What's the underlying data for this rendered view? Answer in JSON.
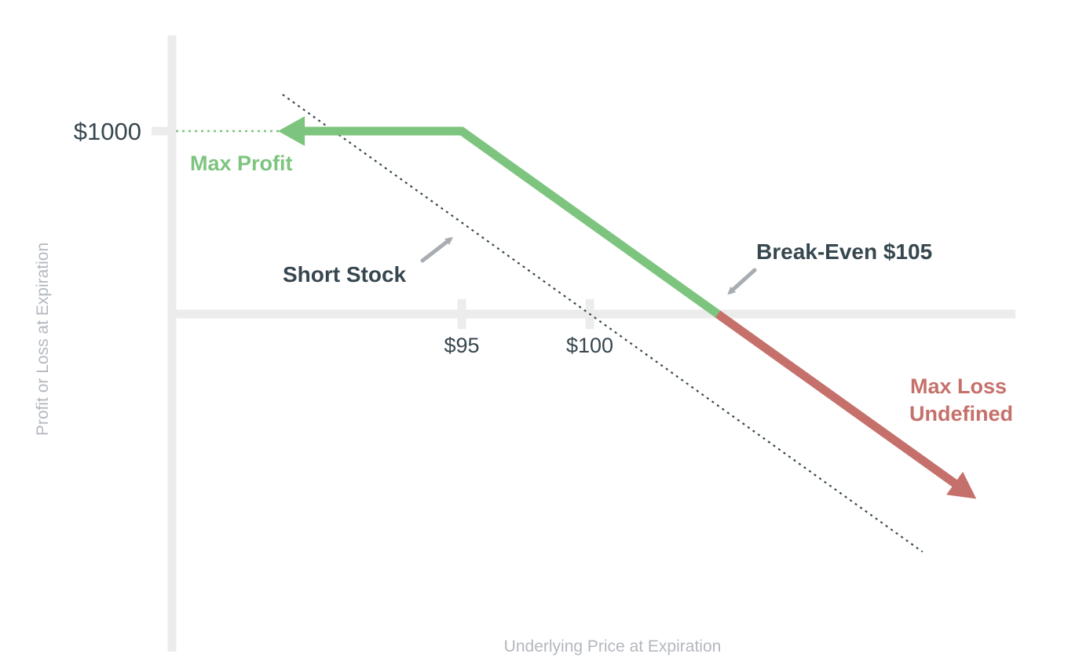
{
  "colors": {
    "profit": "#7dc47e",
    "loss": "#c5706b",
    "axis": "#ececed",
    "text_dark": "#37474f",
    "text_axis": "#b3b8be",
    "annotation_arrow": "#a9adb3",
    "short_stock_line": "#37474f"
  },
  "chart_data": {
    "type": "line",
    "xlabel": "Underlying Price at Expiration",
    "ylabel": "Profit or Loss at Expiration",
    "x_ticks": [
      {
        "value": 95,
        "label": "$95"
      },
      {
        "value": 100,
        "label": "$100"
      }
    ],
    "y_ticks": [
      {
        "value": 1000,
        "label": "$1000"
      }
    ],
    "xlim": [
      83,
      122
    ],
    "ylim": [
      -1700,
      1650
    ],
    "grid": false,
    "series": [
      {
        "role": "profit",
        "values_x": [
          88.5,
          95,
          105
        ],
        "values_y": [
          1000,
          1000,
          0
        ]
      },
      {
        "role": "loss",
        "values_x": [
          105,
          115
        ],
        "values_y": [
          0,
          -1000
        ]
      },
      {
        "name": "Short Stock",
        "role": "short_stock",
        "style": "dotted",
        "values_x": [
          88,
          113
        ],
        "values_y": [
          1200,
          -1300
        ]
      }
    ],
    "annotations": {
      "max_profit": "Max Profit",
      "short_stock": "Short Stock",
      "break_even": "Break-Even $105",
      "max_loss_line1": "Max Loss",
      "max_loss_line2": "Undefined"
    }
  }
}
